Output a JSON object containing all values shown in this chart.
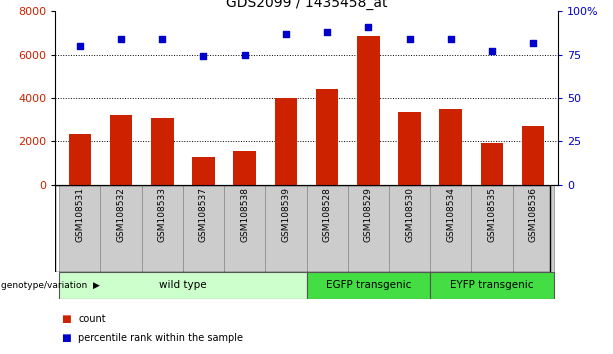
{
  "title": "GDS2099 / 1435458_at",
  "categories": [
    "GSM108531",
    "GSM108532",
    "GSM108533",
    "GSM108537",
    "GSM108538",
    "GSM108539",
    "GSM108528",
    "GSM108529",
    "GSM108530",
    "GSM108534",
    "GSM108535",
    "GSM108536"
  ],
  "bar_values": [
    2350,
    3200,
    3100,
    1300,
    1550,
    4000,
    4400,
    6850,
    3350,
    3500,
    1950,
    2700
  ],
  "dot_values_pct": [
    80,
    84,
    84,
    74,
    75,
    87,
    88,
    91,
    84,
    84,
    77,
    82
  ],
  "bar_color": "#cc2200",
  "dot_color": "#0000cc",
  "ylim_left": [
    0,
    8000
  ],
  "ylim_right": [
    0,
    100
  ],
  "yticks_left": [
    0,
    2000,
    4000,
    6000,
    8000
  ],
  "yticklabels_left": [
    "0",
    "2000",
    "4000",
    "6000",
    "8000"
  ],
  "yticks_right_pct": [
    0,
    25,
    50,
    75,
    100
  ],
  "yticklabels_right": [
    "0",
    "25",
    "50",
    "75",
    "100%"
  ],
  "grid_values": [
    2000,
    4000,
    6000
  ],
  "groups": [
    {
      "label": "wild type",
      "start": 0,
      "end": 6,
      "color": "#ccffcc"
    },
    {
      "label": "EGFP transgenic",
      "start": 6,
      "end": 9,
      "color": "#44dd44"
    },
    {
      "label": "EYFP transgenic",
      "start": 9,
      "end": 12,
      "color": "#44dd44"
    }
  ],
  "group_label_prefix": "genotype/variation",
  "legend": [
    {
      "label": "count",
      "color": "#cc2200"
    },
    {
      "label": "percentile rank within the sample",
      "color": "#0000cc"
    }
  ],
  "tick_box_color": "#cccccc",
  "bg_color": "#ffffff"
}
